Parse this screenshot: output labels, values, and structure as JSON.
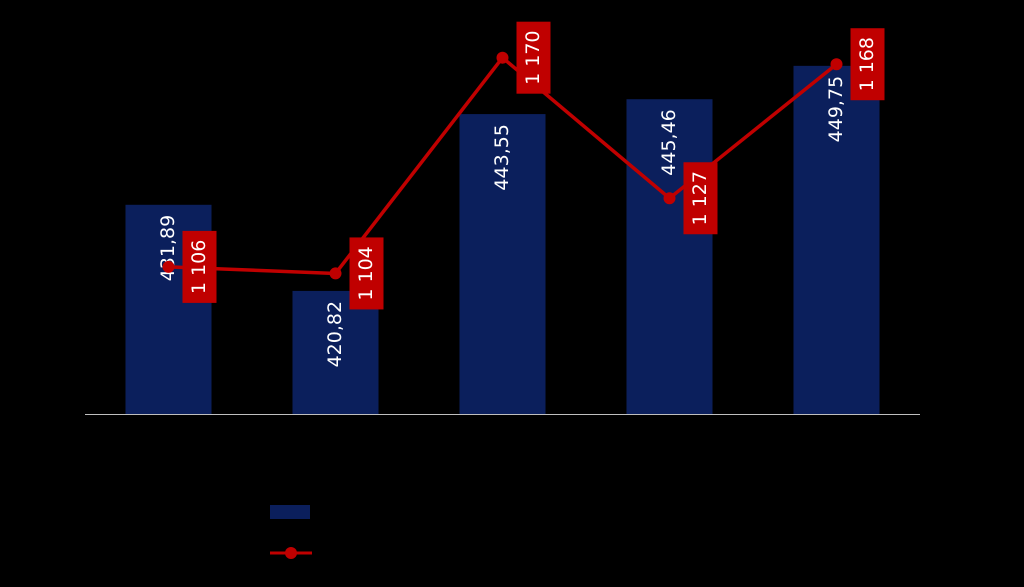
{
  "chart_data": {
    "type": "bar-line",
    "categories": [
      null,
      null,
      null,
      null,
      null
    ],
    "series": [
      {
        "type": "bar",
        "color": "#0b1f5c",
        "values": [
          431.89,
          420.82,
          443.55,
          445.46,
          449.75
        ],
        "value_labels": [
          "431,89",
          "420,82",
          "443,55",
          "445,46",
          "449,75"
        ]
      },
      {
        "type": "line",
        "axis": "y2",
        "color": "#c00000",
        "values": [
          1106,
          1104,
          1170,
          1127,
          1168
        ],
        "value_labels": [
          "1 106",
          "1 104",
          "1 170",
          "1 127",
          "1 168"
        ]
      }
    ],
    "ylim": [
      405,
      455
    ],
    "y2lim": [
      1061,
      1180
    ]
  }
}
